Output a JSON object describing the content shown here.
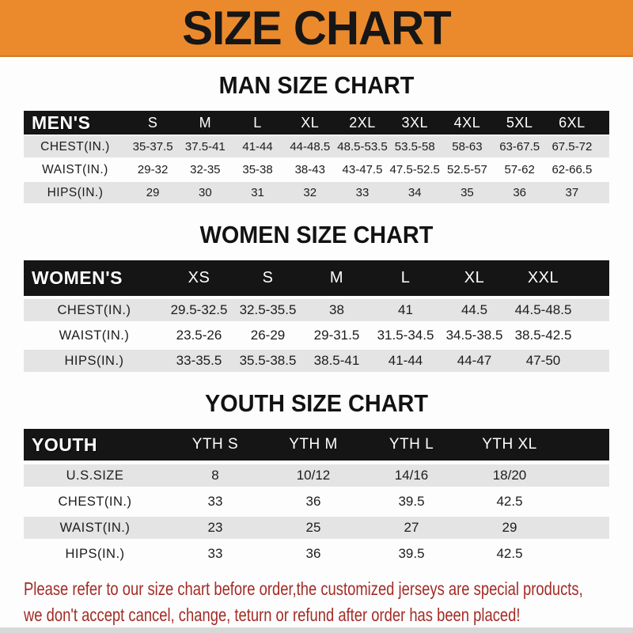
{
  "banner": {
    "title": "SIZE CHART"
  },
  "theme": {
    "banner_bg": "#EB8A2D",
    "bar_bg": "#151515",
    "bar_text": "#FFFFFF",
    "shade_row_bg": "#E4E4E4",
    "heading_color": "#121212",
    "notice_color": "#A32C26"
  },
  "sections": [
    {
      "heading": "MAN SIZE CHART",
      "table": {
        "corner_label": "MEN'S",
        "columns": [
          "S",
          "M",
          "L",
          "XL",
          "2XL",
          "3XL",
          "4XL",
          "5XL",
          "6XL"
        ],
        "rows": [
          {
            "label": "CHEST(IN.)",
            "values": [
              "35-37.5",
              "37.5-41",
              "41-44",
              "44-48.5",
              "48.5-53.5",
              "53.5-58",
              "58-63",
              "63-67.5",
              "67.5-72"
            ]
          },
          {
            "label": "WAIST(IN.)",
            "values": [
              "29-32",
              "32-35",
              "35-38",
              "38-43",
              "43-47.5",
              "47.5-52.5",
              "52.5-57",
              "57-62",
              "62-66.5"
            ]
          },
          {
            "label": "HIPS(IN.)",
            "values": [
              "29",
              "30",
              "31",
              "32",
              "33",
              "34",
              "35",
              "36",
              "37"
            ]
          }
        ]
      }
    },
    {
      "heading": "WOMEN SIZE CHART",
      "table": {
        "corner_label": "WOMEN'S",
        "columns": [
          "XS",
          "S",
          "M",
          "L",
          "XL",
          "XXL"
        ],
        "rows": [
          {
            "label": "CHEST(IN.)",
            "values": [
              "29.5-32.5",
              "32.5-35.5",
              "38",
              "41",
              "44.5",
              "44.5-48.5"
            ]
          },
          {
            "label": "WAIST(IN.)",
            "values": [
              "23.5-26",
              "26-29",
              "29-31.5",
              "31.5-34.5",
              "34.5-38.5",
              "38.5-42.5"
            ]
          },
          {
            "label": "HIPS(IN.)",
            "values": [
              "33-35.5",
              "35.5-38.5",
              "38.5-41",
              "41-44",
              "44-47",
              "47-50"
            ]
          }
        ]
      }
    },
    {
      "heading": "YOUTH SIZE CHART",
      "table": {
        "corner_label": "YOUTH",
        "columns": [
          "YTH S",
          "YTH M",
          "YTH L",
          "YTH XL"
        ],
        "rows": [
          {
            "label": "U.S.SIZE",
            "values": [
              "8",
              "10/12",
              "14/16",
              "18/20"
            ]
          },
          {
            "label": "CHEST(IN.)",
            "values": [
              "33",
              "36",
              "39.5",
              "42.5"
            ]
          },
          {
            "label": "WAIST(IN.)",
            "values": [
              "23",
              "25",
              "27",
              "29"
            ]
          },
          {
            "label": "HIPS(IN.)",
            "values": [
              "33",
              "36",
              "39.5",
              "42.5"
            ]
          }
        ]
      }
    }
  ],
  "footer": {
    "lines": [
      "Please refer to our size chart before order,the customized jerseys are special products,",
      "we don't accept cancel, change, teturn or refund after order has been placed!"
    ]
  },
  "chart_data": [
    {
      "type": "table",
      "title": "MAN SIZE CHART",
      "columns": [
        "MEN'S",
        "S",
        "M",
        "L",
        "XL",
        "2XL",
        "3XL",
        "4XL",
        "5XL",
        "6XL"
      ],
      "rows": [
        [
          "CHEST(IN.)",
          "35-37.5",
          "37.5-41",
          "41-44",
          "44-48.5",
          "48.5-53.5",
          "53.5-58",
          "58-63",
          "63-67.5",
          "67.5-72"
        ],
        [
          "WAIST(IN.)",
          "29-32",
          "32-35",
          "35-38",
          "38-43",
          "43-47.5",
          "47.5-52.5",
          "52.5-57",
          "57-62",
          "62-66.5"
        ],
        [
          "HIPS(IN.)",
          "29",
          "30",
          "31",
          "32",
          "33",
          "34",
          "35",
          "36",
          "37"
        ]
      ]
    },
    {
      "type": "table",
      "title": "WOMEN SIZE CHART",
      "columns": [
        "WOMEN'S",
        "XS",
        "S",
        "M",
        "L",
        "XL",
        "XXL"
      ],
      "rows": [
        [
          "CHEST(IN.)",
          "29.5-32.5",
          "32.5-35.5",
          "38",
          "41",
          "44.5",
          "44.5-48.5"
        ],
        [
          "WAIST(IN.)",
          "23.5-26",
          "26-29",
          "29-31.5",
          "31.5-34.5",
          "34.5-38.5",
          "38.5-42.5"
        ],
        [
          "HIPS(IN.)",
          "33-35.5",
          "35.5-38.5",
          "38.5-41",
          "41-44",
          "44-47",
          "47-50"
        ]
      ]
    },
    {
      "type": "table",
      "title": "YOUTH SIZE CHART",
      "columns": [
        "YOUTH",
        "YTH S",
        "YTH M",
        "YTH L",
        "YTH XL"
      ],
      "rows": [
        [
          "U.S.SIZE",
          "8",
          "10/12",
          "14/16",
          "18/20"
        ],
        [
          "CHEST(IN.)",
          "33",
          "36",
          "39.5",
          "42.5"
        ],
        [
          "WAIST(IN.)",
          "23",
          "25",
          "27",
          "29"
        ],
        [
          "HIPS(IN.)",
          "33",
          "36",
          "39.5",
          "42.5"
        ]
      ]
    }
  ]
}
